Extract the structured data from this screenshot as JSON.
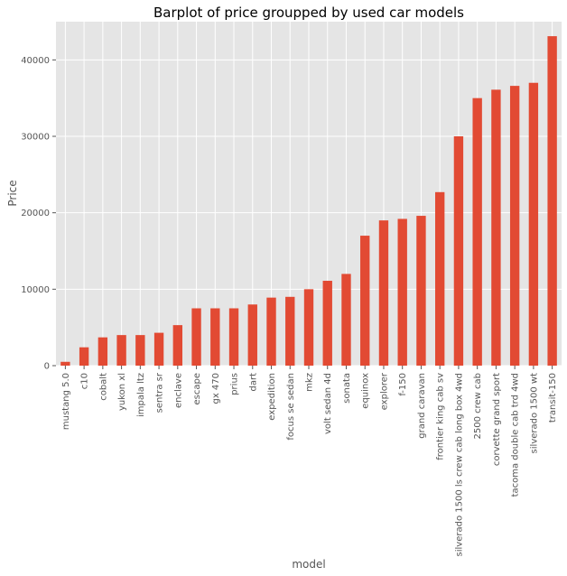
{
  "chart_data": {
    "type": "bar",
    "title": "Barplot of price groupped by used car models",
    "xlabel": "model",
    "ylabel": "Price",
    "ylim": [
      0,
      45000
    ],
    "yticks": [
      0,
      10000,
      20000,
      30000,
      40000
    ],
    "grid": true,
    "bar_color": "#E24A33",
    "background_color": "#E5E5E5",
    "categories": [
      "mustang 5.0",
      "c10",
      "cobalt",
      "yukon xl",
      "impala ltz",
      "sentra sr",
      "enclave",
      "escape",
      "gx 470",
      "prius",
      "dart",
      "expedition",
      "focus se sedan",
      "mkz",
      "volt sedan 4d",
      "sonata",
      "equinox",
      "explorer",
      "f-150",
      "grand caravan",
      "frontier king cab sv",
      "silverado 1500 ls crew cab long box 4wd",
      "2500 crew cab",
      "corvette grand sport",
      "tacoma double cab trd 4wd",
      "silverado 1500 wt",
      "transit-150"
    ],
    "values": [
      500,
      2400,
      3700,
      4000,
      4000,
      4300,
      5300,
      7500,
      7500,
      7500,
      8000,
      8900,
      9000,
      10000,
      11100,
      12000,
      17000,
      19000,
      19200,
      19600,
      22700,
      30000,
      35000,
      36100,
      36600,
      37000,
      43100
    ]
  }
}
